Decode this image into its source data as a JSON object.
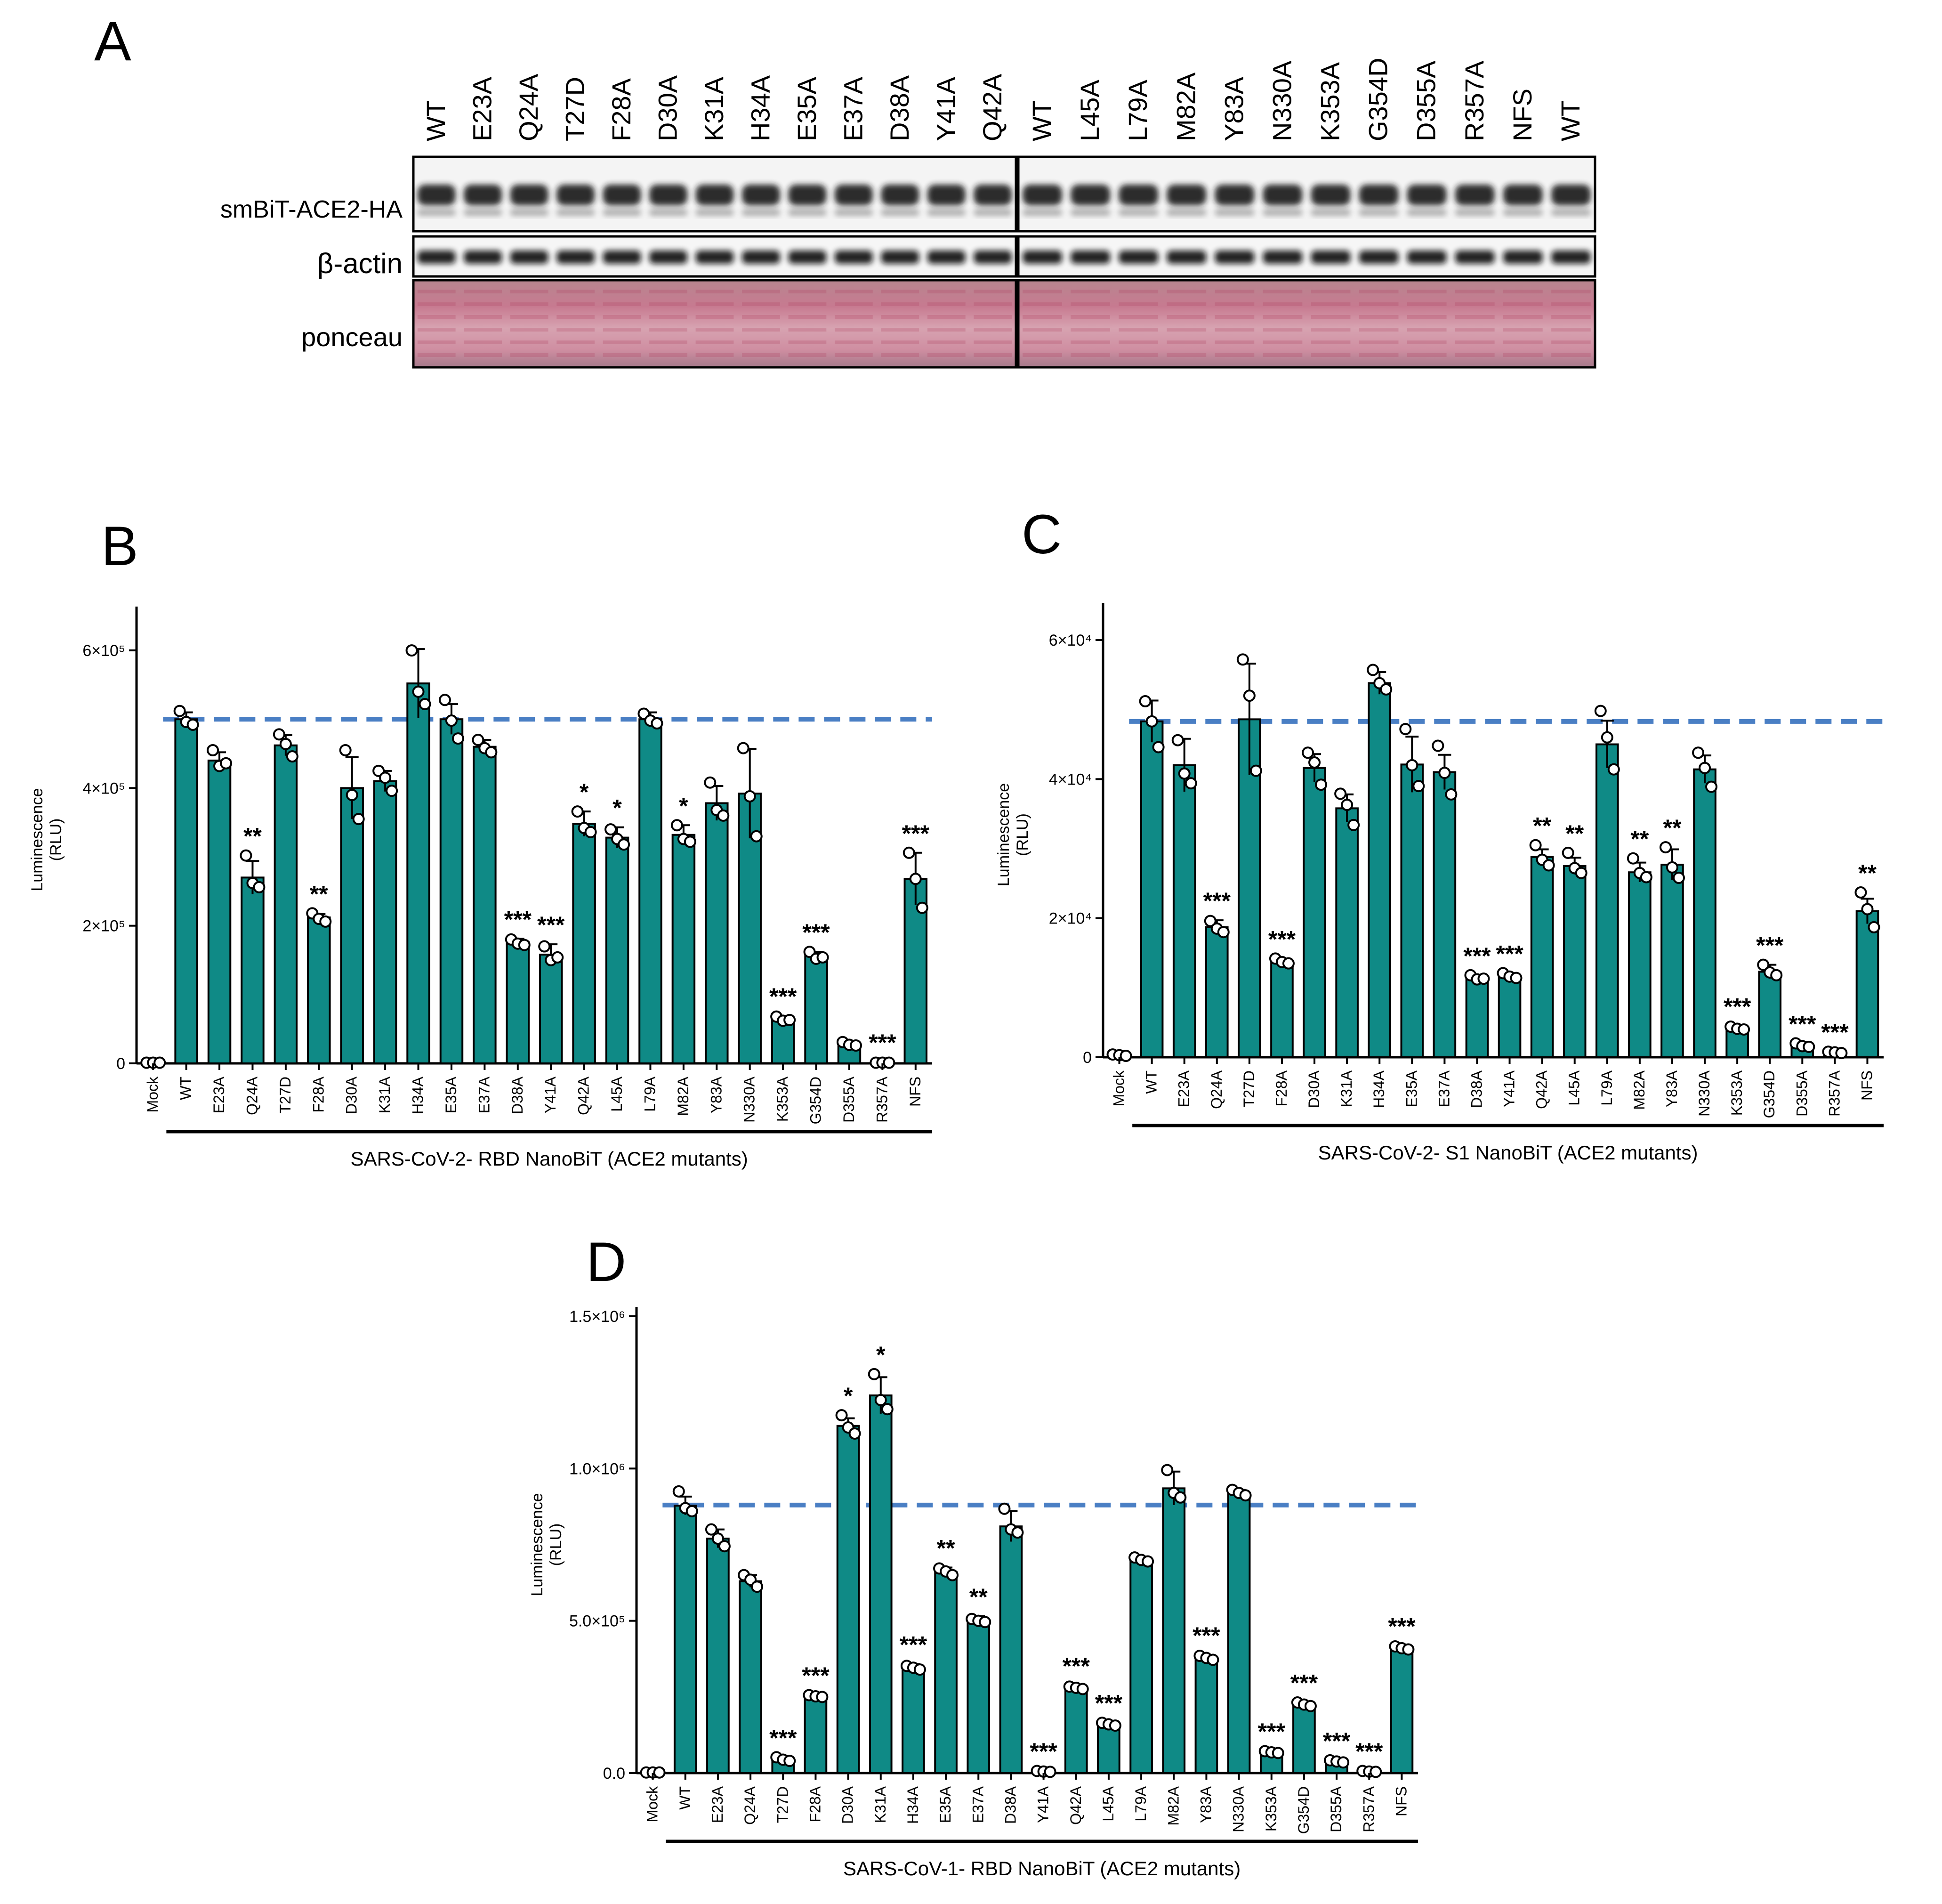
{
  "panels": {
    "A": "A",
    "B": "B",
    "C": "C",
    "D": "D"
  },
  "blot": {
    "rows": [
      "smBiT-ACE2-HA",
      "β-actin",
      "ponceau"
    ],
    "lanes_left": [
      "WT",
      "E23A",
      "Q24A",
      "T27D",
      "F28A",
      "D30A",
      "K31A",
      "H34A",
      "E35A",
      "E37A",
      "D38A",
      "Y41A",
      "Q42A"
    ],
    "lanes_right": [
      "WT",
      "L45A",
      "L79A",
      "M82A",
      "Y83A",
      "N330A",
      "K353A",
      "G354D",
      "D355A",
      "R357A",
      "NFS",
      "WT"
    ]
  },
  "chart_data": [
    {
      "panel": "B",
      "type": "bar",
      "ylabel": "Luminescence\n(RLU)",
      "xlabel": "SARS-CoV-2- RBD NanoBiT (ACE2 mutants)",
      "ylim": [
        0,
        650000
      ],
      "yticks": [
        {
          "value": 0,
          "label": "0"
        },
        {
          "value": 200000,
          "label": "2×10⁵"
        },
        {
          "value": 400000,
          "label": "4×10⁵"
        },
        {
          "value": 600000,
          "label": "6×10⁵"
        }
      ],
      "reference_line": 500000,
      "color": "#0f8a86",
      "reference_color": "#4a7fc4",
      "categories": [
        "Mock",
        "WT",
        "E23A",
        "Q24A",
        "T27D",
        "F28A",
        "D30A",
        "K31A",
        "H34A",
        "E35A",
        "E37A",
        "D38A",
        "Y41A",
        "Q42A",
        "L45A",
        "L79A",
        "M82A",
        "Y83A",
        "N330A",
        "K353A",
        "G354D",
        "D355A",
        "R357A",
        "NFS"
      ],
      "values": [
        1000,
        500000,
        440000,
        270000,
        462000,
        212000,
        400000,
        410000,
        552000,
        500000,
        460000,
        176000,
        158000,
        348000,
        328000,
        500000,
        332000,
        378000,
        392000,
        64000,
        156000,
        28000,
        1000,
        268000
      ],
      "errors": [
        1000,
        10000,
        12000,
        24000,
        15000,
        5000,
        45000,
        15000,
        50000,
        22000,
        10000,
        5000,
        15000,
        18000,
        15000,
        10000,
        14000,
        25000,
        65000,
        5000,
        6000,
        3000,
        1000,
        38000
      ],
      "points": [
        [
          1000,
          1000,
          1000
        ],
        [
          512000,
          496000,
          492000
        ],
        [
          455000,
          432000,
          436000
        ],
        [
          302000,
          262000,
          256000
        ],
        [
          478000,
          464000,
          446000
        ],
        [
          218000,
          210000,
          206000
        ],
        [
          455000,
          390000,
          355000
        ],
        [
          425000,
          415000,
          396000
        ],
        [
          600000,
          540000,
          522000
        ],
        [
          528000,
          498000,
          472000
        ],
        [
          470000,
          458000,
          452000
        ],
        [
          180000,
          174000,
          172000
        ],
        [
          170000,
          150000,
          154000
        ],
        [
          366000,
          342000,
          336000
        ],
        [
          340000,
          326000,
          318000
        ],
        [
          508000,
          498000,
          494000
        ],
        [
          346000,
          326000,
          322000
        ],
        [
          408000,
          368000,
          360000
        ],
        [
          458000,
          388000,
          330000
        ],
        [
          68000,
          62000,
          63000
        ],
        [
          162000,
          152000,
          154000
        ],
        [
          31000,
          27000,
          26000
        ],
        [
          1000,
          1000,
          1000
        ],
        [
          306000,
          268000,
          226000
        ]
      ],
      "significance": [
        "",
        "",
        "",
        "**",
        "",
        "**",
        "",
        "",
        "",
        "",
        "",
        "***",
        "***",
        "*",
        "*",
        "",
        "*",
        "",
        "",
        "***",
        "***",
        "",
        "***",
        "***"
      ]
    },
    {
      "panel": "C",
      "type": "bar",
      "ylabel": "Luminescence\n(RLU)",
      "xlabel": "SARS-CoV-2- S1 NanoBiT (ACE2 mutants)",
      "ylim": [
        0,
        64000
      ],
      "yticks": [
        {
          "value": 0,
          "label": "0"
        },
        {
          "value": 20000,
          "label": "2×10⁴"
        },
        {
          "value": 40000,
          "label": "4×10⁴"
        },
        {
          "value": 60000,
          "label": "6×10⁴"
        }
      ],
      "reference_line": 48300,
      "color": "#0f8a86",
      "reference_color": "#4a7fc4",
      "categories": [
        "Mock",
        "WT",
        "E23A",
        "Q24A",
        "T27D",
        "F28A",
        "D30A",
        "K31A",
        "H34A",
        "E35A",
        "E37A",
        "D38A",
        "Y41A",
        "Q42A",
        "L45A",
        "L79A",
        "M82A",
        "Y83A",
        "N330A",
        "K353A",
        "G354D",
        "D355A",
        "R357A",
        "NFS"
      ],
      "values": [
        300,
        48300,
        42000,
        18700,
        48600,
        13800,
        41600,
        35800,
        53800,
        42100,
        41000,
        11400,
        11700,
        28800,
        27500,
        45000,
        26600,
        27700,
        41400,
        4200,
        12300,
        1700,
        700,
        21000
      ],
      "errors": [
        200,
        3000,
        3800,
        1000,
        8000,
        400,
        2000,
        2000,
        1600,
        4000,
        2500,
        400,
        400,
        1100,
        1200,
        3400,
        1400,
        2200,
        2000,
        300,
        1000,
        300,
        100,
        1800
      ],
      "points": [
        [
          400,
          300,
          200
        ],
        [
          51200,
          48300,
          44600
        ],
        [
          45600,
          40800,
          39400
        ],
        [
          19600,
          18500,
          18000
        ],
        [
          57200,
          52000,
          41200
        ],
        [
          14200,
          13700,
          13500
        ],
        [
          43800,
          42400,
          39200
        ],
        [
          37900,
          36300,
          33400
        ],
        [
          55700,
          53800,
          52900
        ],
        [
          47200,
          42000,
          39000
        ],
        [
          44800,
          40900,
          37800
        ],
        [
          11800,
          11200,
          11300
        ],
        [
          12100,
          11600,
          11400
        ],
        [
          30500,
          28400,
          27600
        ],
        [
          29400,
          27200,
          26500
        ],
        [
          49800,
          46000,
          41400
        ],
        [
          28600,
          26500,
          25900
        ],
        [
          30200,
          27300,
          25800
        ],
        [
          43800,
          41600,
          38900
        ],
        [
          4400,
          4100,
          4000
        ],
        [
          13300,
          12200,
          11800
        ],
        [
          2000,
          1600,
          1500
        ],
        [
          800,
          700,
          600
        ],
        [
          23700,
          21300,
          18700
        ]
      ],
      "significance": [
        "",
        "",
        "",
        "***",
        "",
        "***",
        "",
        "",
        "",
        "",
        "",
        "***",
        "***",
        "**",
        "**",
        "",
        "**",
        "**",
        "",
        "***",
        "***",
        "***",
        "***",
        "**"
      ]
    },
    {
      "panel": "D",
      "type": "bar",
      "ylabel": "Luminescence\n(RLU)",
      "xlabel": "SARS-CoV-1- RBD NanoBiT (ACE2 mutants)",
      "ylim": [
        0,
        1500000
      ],
      "yticks": [
        {
          "value": 0,
          "label": "0.0"
        },
        {
          "value": 500000,
          "label": "5.0×10⁵"
        },
        {
          "value": 1000000,
          "label": "1.0×10⁶"
        },
        {
          "value": 1500000,
          "label": "1.5×10⁶"
        }
      ],
      "reference_line": 880000,
      "color": "#0f8a86",
      "reference_color": "#4a7fc4",
      "categories": [
        "Mock",
        "WT",
        "E23A",
        "Q24A",
        "T27D",
        "F28A",
        "D30A",
        "K31A",
        "H34A",
        "E35A",
        "E37A",
        "D38A",
        "Y41A",
        "Q42A",
        "L45A",
        "L79A",
        "M82A",
        "Y83A",
        "N330A",
        "K353A",
        "G354D",
        "D355A",
        "R357A",
        "NFS"
      ],
      "values": [
        2000,
        878000,
        770000,
        630000,
        45000,
        252000,
        1140000,
        1240000,
        348000,
        660000,
        500000,
        810000,
        5000,
        280000,
        160000,
        700000,
        935000,
        378000,
        920000,
        68000,
        225000,
        38000,
        5000,
        410000
      ],
      "errors": [
        1000,
        30000,
        30000,
        20000,
        5000,
        5000,
        25000,
        60000,
        10000,
        15000,
        15000,
        50000,
        3000,
        8000,
        6000,
        10000,
        55000,
        10000,
        10000,
        5000,
        8000,
        4000,
        3000,
        8000
      ],
      "points": [
        [
          2000,
          2000,
          2000
        ],
        [
          925000,
          870000,
          860000
        ],
        [
          800000,
          770000,
          745000
        ],
        [
          650000,
          635000,
          612000
        ],
        [
          52000,
          44000,
          40000
        ],
        [
          256000,
          252000,
          250000
        ],
        [
          1175000,
          1135000,
          1115000
        ],
        [
          1310000,
          1225000,
          1195000
        ],
        [
          352000,
          346000,
          340000
        ],
        [
          672000,
          662000,
          650000
        ],
        [
          506000,
          500000,
          496000
        ],
        [
          868000,
          800000,
          790000
        ],
        [
          7000,
          5000,
          4000
        ],
        [
          284000,
          280000,
          276000
        ],
        [
          165000,
          160000,
          156000
        ],
        [
          708000,
          700000,
          695000
        ],
        [
          995000,
          920000,
          905000
        ],
        [
          385000,
          378000,
          372000
        ],
        [
          930000,
          920000,
          912000
        ],
        [
          72000,
          68000,
          66000
        ],
        [
          232000,
          225000,
          220000
        ],
        [
          42000,
          38000,
          35000
        ],
        [
          7000,
          5000,
          4000
        ],
        [
          416000,
          410000,
          406000
        ]
      ],
      "significance": [
        "",
        "",
        "",
        "",
        "***",
        "***",
        "*",
        "*",
        "***",
        "**",
        "**",
        "",
        "***",
        "***",
        "***",
        "",
        "",
        "***",
        "",
        "***",
        "***",
        "***",
        "***",
        "***"
      ]
    }
  ]
}
